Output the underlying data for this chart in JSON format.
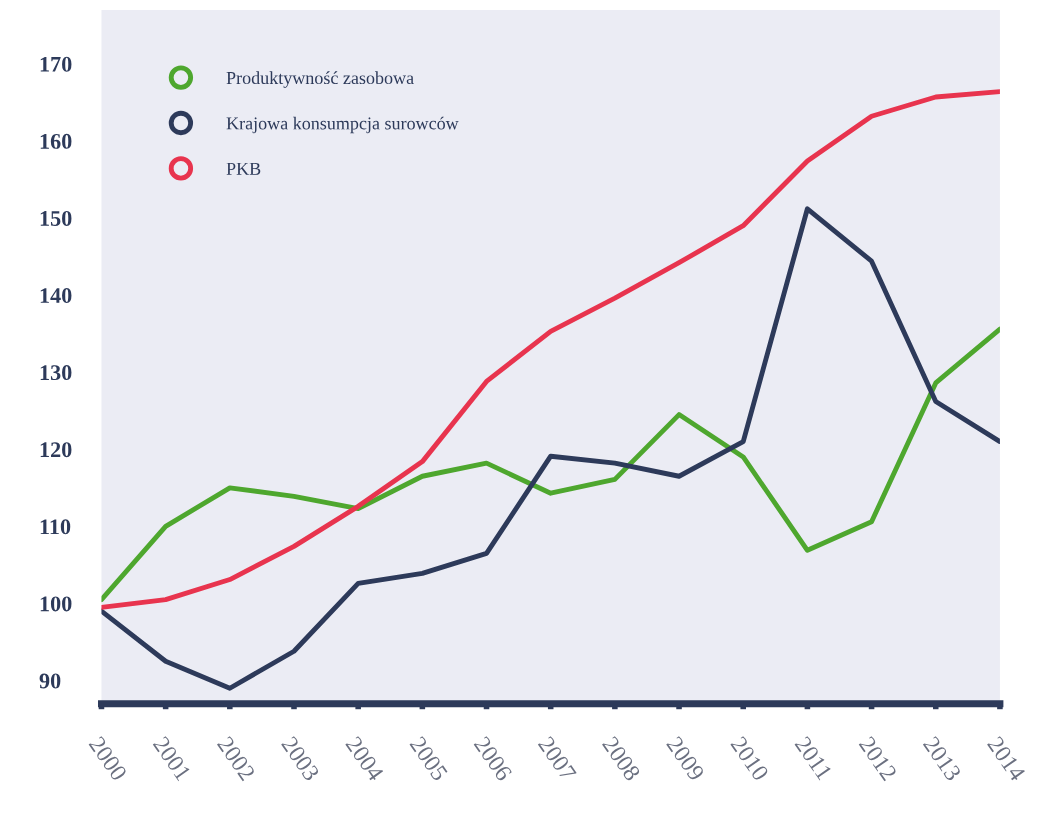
{
  "chart_data": {
    "type": "line",
    "categories": [
      "2000",
      "2001",
      "2002",
      "2003",
      "2004",
      "2005",
      "2006",
      "2007",
      "2008",
      "2009",
      "2010",
      "2011",
      "2012",
      "2013",
      "2014"
    ],
    "series": [
      {
        "name": "Produktywność zasobowa",
        "color": "#4ea72e",
        "values": [
          100.5,
          110,
          115,
          113.9,
          112.3,
          116.5,
          118.2,
          114.3,
          116.1,
          124.5,
          119,
          106.9,
          110.6,
          128.6,
          135.6
        ]
      },
      {
        "name": "Krajowa konsumpcja surowców",
        "color": "#2d3a5a",
        "values": [
          99,
          92.5,
          89,
          93.8,
          102.6,
          103.9,
          106.5,
          119.1,
          118.2,
          116.5,
          121,
          151.2,
          144.4,
          126.2,
          121
        ]
      },
      {
        "name": "PKB",
        "color": "#e8344e",
        "values": [
          99.5,
          100.5,
          103.1,
          107.4,
          112.6,
          118.4,
          128.8,
          135.3,
          139.6,
          144.2,
          149,
          157.4,
          163.2,
          165.7,
          166.4
        ]
      }
    ],
    "ylim": [
      87,
      177
    ],
    "yticks": [
      90,
      100,
      110,
      120,
      130,
      140,
      150,
      160,
      170
    ],
    "grid": false,
    "legend": "top left",
    "marker": "none",
    "line_style": "solid"
  }
}
